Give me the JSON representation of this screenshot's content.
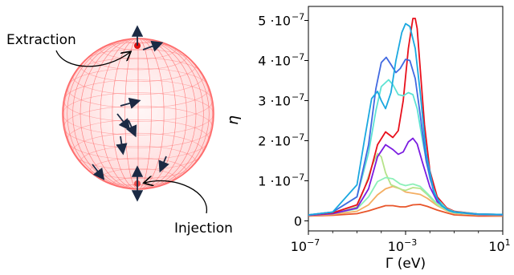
{
  "figure": {
    "sphere_labels": {
      "extraction": "Extraction",
      "injection": "Injection"
    },
    "sphere_color": "#ff6b6b",
    "arrow_color": "#1b2a44"
  },
  "chart_data": {
    "type": "line",
    "xscale": "log",
    "xlabel": "Γ (eV)",
    "ylabel": "η",
    "xlim": [
      1e-07,
      10
    ],
    "ylim": [
      -2.5e-08,
      5.35e-07
    ],
    "x_ticks": [
      {
        "value": 1e-07,
        "base": "10",
        "exp": "−7"
      },
      {
        "value": 0.001,
        "base": "10",
        "exp": "−3"
      },
      {
        "value": 10,
        "base": "10",
        "exp": "1"
      }
    ],
    "y_ticks": [
      {
        "value": 0,
        "mant": "0",
        "exp": ""
      },
      {
        "value": 1e-07,
        "mant": "1 ·10",
        "exp": "−7"
      },
      {
        "value": 2e-07,
        "mant": "2 ·10",
        "exp": "−7"
      },
      {
        "value": 3e-07,
        "mant": "3 ·10",
        "exp": "−7"
      },
      {
        "value": 4e-07,
        "mant": "4 ·10",
        "exp": "−7"
      },
      {
        "value": 5e-07,
        "mant": "5 ·10",
        "exp": "−7"
      }
    ],
    "grid": false,
    "legend": "none",
    "series": [
      {
        "color": "#e8552a",
        "x": [
          1e-07,
          1e-06,
          1e-05,
          3e-05,
          7e-05,
          0.00015,
          0.0003,
          0.0006,
          0.001,
          0.002,
          0.004,
          0.008,
          0.02,
          0.05,
          0.1,
          1,
          10
        ],
        "y": [
          1.2e-08,
          1.4e-08,
          1.8e-08,
          2.5e-08,
          3.2e-08,
          3.8e-08,
          3.8e-08,
          3.5e-08,
          3.5e-08,
          4e-08,
          4.1e-08,
          3.6e-08,
          2.7e-08,
          2e-08,
          1.5e-08,
          1.2e-08,
          1.2e-08
        ]
      },
      {
        "color": "#f4ae62",
        "x": [
          1e-07,
          1e-06,
          1e-05,
          3e-05,
          7e-05,
          0.00015,
          0.0003,
          0.0006,
          0.001,
          0.002,
          0.004,
          0.008,
          0.02,
          0.05,
          0.1,
          1,
          10
        ],
        "y": [
          1.3e-08,
          1.6e-08,
          2.4e-08,
          4e-08,
          6.5e-08,
          8e-08,
          8.6e-08,
          8e-08,
          7.2e-08,
          6.9e-08,
          6.6e-08,
          5.6e-08,
          3.8e-08,
          2.5e-08,
          1.9e-08,
          1.5e-08,
          1.4e-08
        ]
      },
      {
        "color": "#b6e38a",
        "x": [
          1e-07,
          1e-06,
          1e-05,
          2e-05,
          4e-05,
          7e-05,
          0.0001,
          0.00015,
          0.00025,
          0.0004,
          0.0007,
          0.001,
          0.002,
          0.004,
          0.008,
          0.02,
          0.05,
          0.1,
          1,
          10
        ],
        "y": [
          1.4e-08,
          1.8e-08,
          3.5e-08,
          8e-08,
          1.35e-07,
          1.68e-07,
          1.6e-07,
          1.2e-07,
          9e-08,
          8.5e-08,
          7.8e-08,
          7.6e-08,
          8.3e-08,
          8.1e-08,
          6.5e-08,
          4e-08,
          2.6e-08,
          2e-08,
          1.5e-08,
          1.4e-08
        ]
      },
      {
        "color": "#8cf0b8",
        "x": [
          1e-07,
          1e-06,
          1e-05,
          3e-05,
          7e-05,
          0.00015,
          0.0003,
          0.0006,
          0.001,
          0.002,
          0.004,
          0.008,
          0.02,
          0.05,
          0.1,
          1,
          10
        ],
        "y": [
          1.4e-08,
          1.8e-08,
          3e-08,
          6e-08,
          9.8e-08,
          1.08e-07,
          1.05e-07,
          9.2e-08,
          8.8e-08,
          9.2e-08,
          8.6e-08,
          6.8e-08,
          4.3e-08,
          2.8e-08,
          2.1e-08,
          1.6e-08,
          1.5e-08
        ]
      },
      {
        "color": "#7a1be0",
        "x": [
          1e-07,
          1e-06,
          1e-05,
          3e-05,
          7e-05,
          0.00015,
          0.0003,
          0.0005,
          0.0008,
          0.0013,
          0.002,
          0.003,
          0.005,
          0.01,
          0.02,
          0.05,
          0.1,
          1,
          10
        ],
        "y": [
          1.4e-08,
          1.8e-08,
          3.2e-08,
          8e-08,
          1.6e-07,
          1.9e-07,
          1.78e-07,
          1.66e-07,
          1.72e-07,
          1.97e-07,
          2.06e-07,
          1.92e-07,
          1.45e-07,
          8.5e-08,
          4.8e-08,
          2.9e-08,
          2.2e-08,
          1.6e-08,
          1.5e-08
        ]
      },
      {
        "color": "#e8101c",
        "x": [
          1e-07,
          1e-06,
          1e-05,
          3e-05,
          7e-05,
          0.00015,
          0.0003,
          0.0005,
          0.0008,
          0.0013,
          0.002,
          0.0025,
          0.003,
          0.004,
          0.006,
          0.01,
          0.02,
          0.05,
          0.1,
          1,
          10
        ],
        "y": [
          1.5e-08,
          2e-08,
          4e-08,
          1.05e-07,
          1.9e-07,
          2.22e-07,
          2.08e-07,
          2.25e-07,
          3e-07,
          4.3e-07,
          5.05e-07,
          5.05e-07,
          4.8e-07,
          3.8e-07,
          2.4e-07,
          1.25e-07,
          6e-08,
          3.2e-08,
          2.4e-08,
          1.7e-08,
          1.6e-08
        ]
      },
      {
        "color": "#5ce2d4",
        "x": [
          1e-07,
          1e-06,
          1e-05,
          3e-05,
          6e-05,
          0.0001,
          0.0002,
          0.0003,
          0.0005,
          0.0008,
          0.0013,
          0.002,
          0.003,
          0.005,
          0.01,
          0.02,
          0.05,
          0.1,
          1,
          10
        ],
        "y": [
          1.5e-08,
          2.2e-08,
          6e-08,
          1.7e-07,
          2.75e-07,
          3.35e-07,
          3.52e-07,
          3.4e-07,
          3.15e-07,
          3.12e-07,
          3.2e-07,
          3.15e-07,
          2.8e-07,
          2e-07,
          1.05e-07,
          5.5e-08,
          3e-08,
          2.3e-08,
          1.7e-08,
          1.6e-08
        ]
      },
      {
        "color": "#4169e1",
        "x": [
          1e-07,
          1e-06,
          1e-05,
          3e-05,
          6e-05,
          0.0001,
          0.00016,
          0.00025,
          0.0004,
          0.0006,
          0.001,
          0.0015,
          0.0025,
          0.004,
          0.007,
          0.015,
          0.03,
          0.06,
          0.1,
          1,
          10
        ],
        "y": [
          1.5e-08,
          2.2e-08,
          6e-08,
          1.9e-07,
          3.3e-07,
          3.95e-07,
          4.08e-07,
          3.9e-07,
          3.7e-07,
          3.8e-07,
          4.03e-07,
          4e-07,
          3.55e-07,
          2.65e-07,
          1.5e-07,
          6.8e-08,
          3.8e-08,
          2.6e-08,
          2.2e-08,
          1.7e-08,
          1.6e-08
        ]
      },
      {
        "color": "#1aa8e0",
        "x": [
          1e-07,
          1e-06,
          1e-05,
          2e-05,
          4e-05,
          7e-05,
          0.0001,
          0.00015,
          0.00025,
          0.0004,
          0.0007,
          0.001,
          0.0015,
          0.0025,
          0.004,
          0.007,
          0.015,
          0.03,
          0.06,
          0.1,
          1,
          10
        ],
        "y": [
          1.5e-08,
          2.2e-08,
          9e-08,
          2e-07,
          3.05e-07,
          3.23e-07,
          3e-07,
          2.8e-07,
          3.2e-07,
          4e-07,
          4.7e-07,
          4.92e-07,
          4.85e-07,
          4.3e-07,
          3.2e-07,
          1.7e-07,
          7e-08,
          3.8e-08,
          2.6e-08,
          2.2e-08,
          1.7e-08,
          1.6e-08
        ]
      }
    ]
  }
}
